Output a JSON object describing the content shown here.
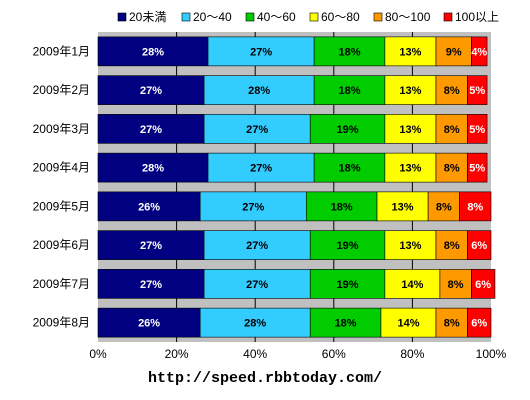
{
  "chart_data": {
    "type": "bar",
    "orientation": "horizontal",
    "stacked": true,
    "percent_stacked": true,
    "categories": [
      "2009年1月",
      "2009年2月",
      "2009年3月",
      "2009年4月",
      "2009年5月",
      "2009年6月",
      "2009年7月",
      "2009年8月"
    ],
    "series": [
      {
        "name": "20未満",
        "color": "#000080",
        "label_color": "#ffffff",
        "values": [
          28,
          27,
          27,
          28,
          26,
          27,
          27,
          26
        ]
      },
      {
        "name": "20～40",
        "color": "#33ccff",
        "label_color": "#000000",
        "values": [
          27,
          28,
          27,
          27,
          27,
          27,
          27,
          28
        ]
      },
      {
        "name": "40～60",
        "color": "#00cc00",
        "label_color": "#000000",
        "values": [
          18,
          18,
          19,
          18,
          18,
          19,
          19,
          18
        ]
      },
      {
        "name": "60～80",
        "color": "#ffff00",
        "label_color": "#000000",
        "values": [
          13,
          13,
          13,
          13,
          13,
          13,
          14,
          14
        ]
      },
      {
        "name": "80～100",
        "color": "#ff9900",
        "label_color": "#000000",
        "values": [
          9,
          8,
          8,
          8,
          8,
          8,
          8,
          8
        ]
      },
      {
        "name": "100以上",
        "color": "#ff0000",
        "label_color": "#ffffff",
        "values": [
          4,
          5,
          5,
          5,
          8,
          6,
          6,
          6
        ]
      }
    ],
    "xlim": [
      0,
      100
    ],
    "x_ticks": [
      "0%",
      "20%",
      "40%",
      "60%",
      "80%",
      "100%"
    ],
    "grid": true,
    "legend_position": "top",
    "plot_background": "#c0c0c0"
  },
  "footer": {
    "url": "http://speed.rbbtoday.com/"
  }
}
